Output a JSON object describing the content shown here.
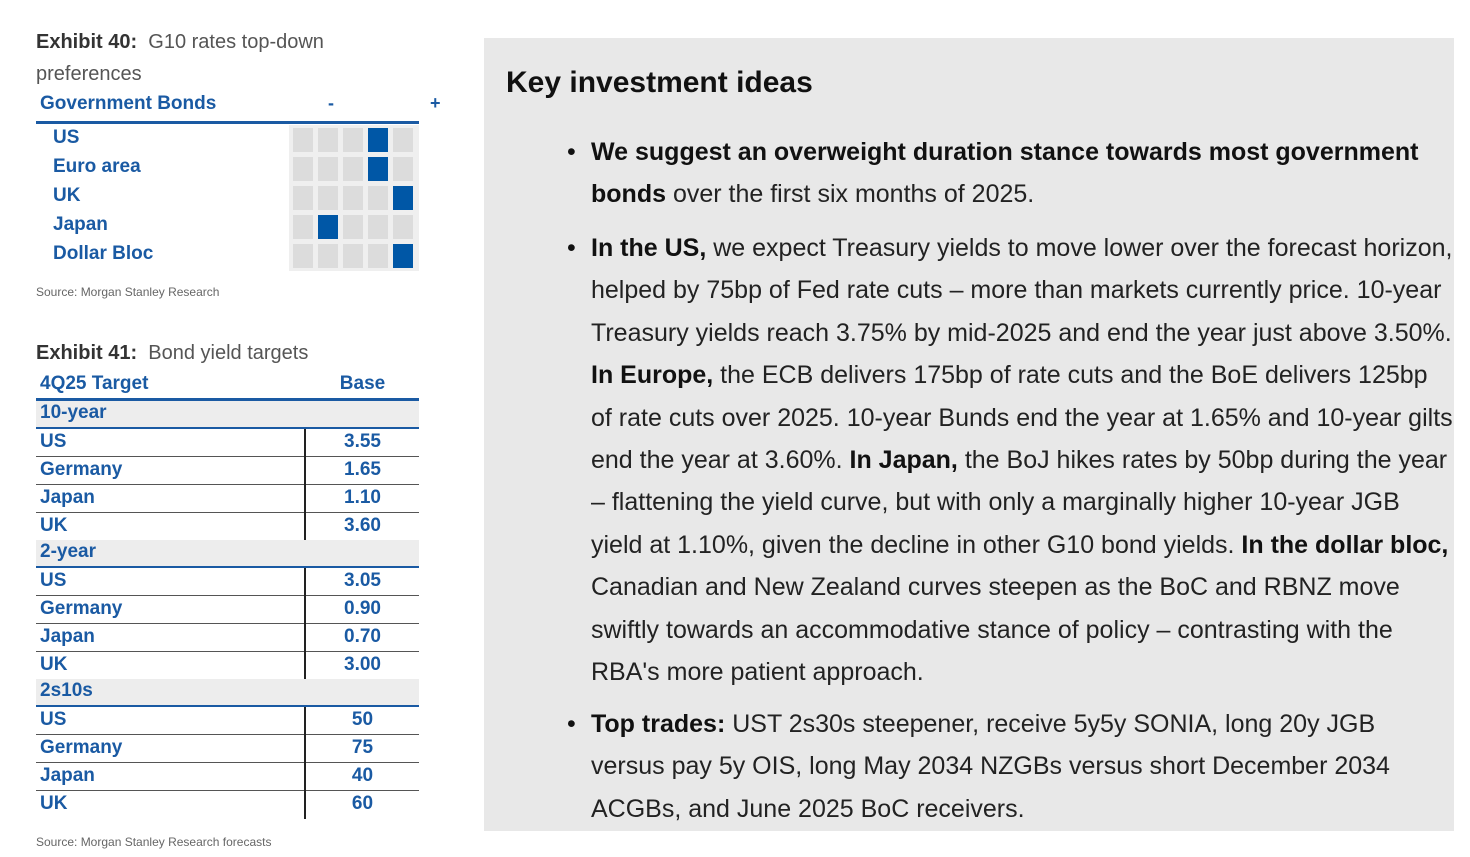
{
  "exhibit40": {
    "label": "Exhibit 40:",
    "title": "G10 rates top-down preferences",
    "header": {
      "label": "Government Bonds",
      "minus": "-",
      "plus": "+"
    },
    "rows": [
      {
        "name": "US",
        "level": 4
      },
      {
        "name": "Euro area",
        "level": 4
      },
      {
        "name": "UK",
        "level": 5
      },
      {
        "name": "Japan",
        "level": 2
      },
      {
        "name": "Dollar Bloc",
        "level": 5
      }
    ],
    "source": "Source: Morgan Stanley Research"
  },
  "exhibit41": {
    "label": "Exhibit 41:",
    "title": "Bond yield targets",
    "header": {
      "col1": "4Q25 Target",
      "col2": "Base"
    },
    "sections": [
      {
        "name": "10-year",
        "rows": [
          {
            "name": "US",
            "value": "3.55"
          },
          {
            "name": "Germany",
            "value": "1.65"
          },
          {
            "name": "Japan",
            "value": "1.10"
          },
          {
            "name": "UK",
            "value": "3.60"
          }
        ]
      },
      {
        "name": "2-year",
        "rows": [
          {
            "name": "US",
            "value": "3.05"
          },
          {
            "name": "Germany",
            "value": "0.90"
          },
          {
            "name": "Japan",
            "value": "0.70"
          },
          {
            "name": "UK",
            "value": "3.00"
          }
        ]
      },
      {
        "name": "2s10s",
        "rows": [
          {
            "name": "US",
            "value": "50"
          },
          {
            "name": "Germany",
            "value": "75"
          },
          {
            "name": "Japan",
            "value": "40"
          },
          {
            "name": "UK",
            "value": "60"
          }
        ]
      }
    ],
    "source": "Source: Morgan Stanley Research forecasts"
  },
  "panel": {
    "heading": "Key investment ideas",
    "bullets": [
      {
        "parts": [
          {
            "b": true,
            "t": "We suggest an overweight duration stance towards most government bonds"
          },
          {
            "b": false,
            "t": " over the first six months of 2025."
          }
        ]
      },
      {
        "parts": [
          {
            "b": true,
            "t": "In the US,"
          },
          {
            "b": false,
            "t": " we expect Treasury yields to move lower over the forecast horizon, helped by 75bp of Fed rate cuts – more than markets currently price. 10-year Treasury yields reach 3.75% by mid-2025 and end the year just above 3.50%. "
          },
          {
            "b": true,
            "t": "In Europe,"
          },
          {
            "b": false,
            "t": " the ECB delivers 175bp of rate cuts and the BoE delivers 125bp of rate cuts over 2025. 10-year Bunds end the year at 1.65% and 10-year gilts end the year at 3.60%. "
          },
          {
            "b": true,
            "t": "In Japan,"
          },
          {
            "b": false,
            "t": " the BoJ hikes rates by 50bp during the year – flattening the yield curve, but with only a marginally higher 10-year JGB yield at 1.10%, given the decline in other G10 bond yields. "
          },
          {
            "b": true,
            "t": "In the dollar bloc,"
          },
          {
            "b": false,
            "t": " Canadian and New Zealand curves steepen as the BoC and RBNZ move swiftly towards an accommodative stance of policy – contrasting with the RBA's more patient approach."
          }
        ]
      },
      {
        "parts": [
          {
            "b": true,
            "t": "Top trades:"
          },
          {
            "b": false,
            "t": " UST 2s30s steepener, receive 5y5y SONIA, long 20y JGB versus pay 5y OIS, long May 2034 NZGBs versus short December 2034 ACGBs, and June 2025 BoC receivers."
          }
        ]
      }
    ]
  }
}
